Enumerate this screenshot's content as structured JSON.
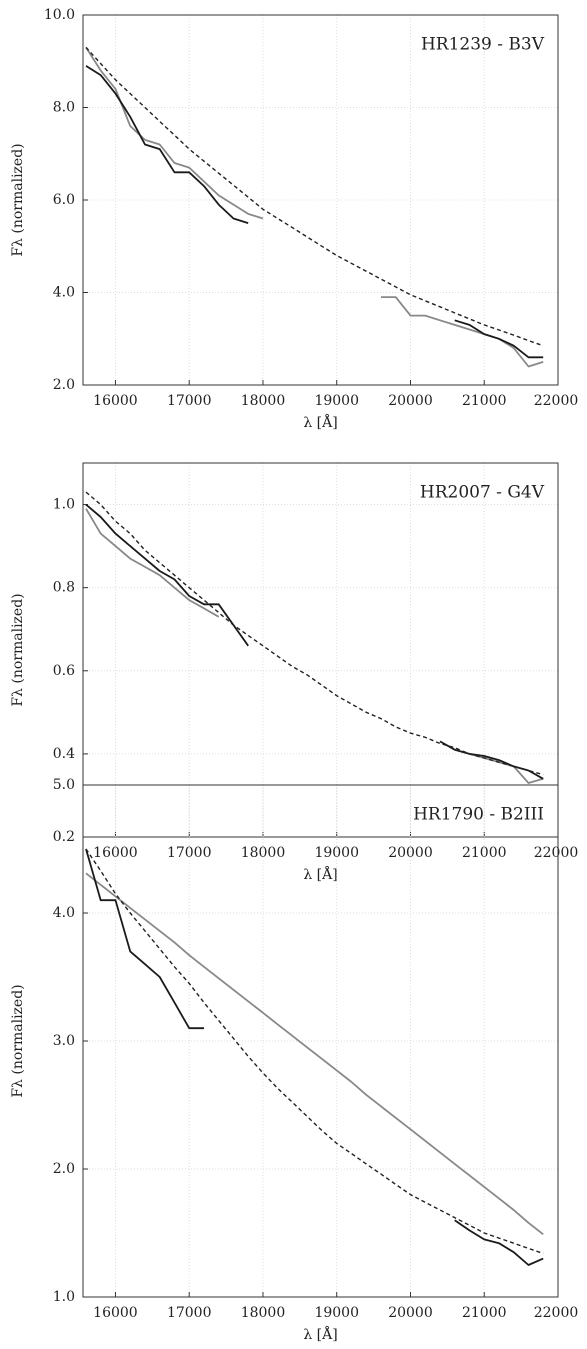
{
  "chart_data": [
    {
      "type": "line",
      "annotation": "HR1239 - B3V",
      "xlabel": "λ [Å]",
      "ylabel": "Fλ (normalized)",
      "xlim": [
        15560,
        22000
      ],
      "xticks": [
        16000,
        17000,
        18000,
        19000,
        20000,
        21000,
        22000
      ],
      "ylim": [
        2,
        10
      ],
      "yticks": [
        {
          "value": 2,
          "label": "2.0"
        },
        {
          "value": 4,
          "label": "4.0"
        },
        {
          "value": 6,
          "label": "6.0"
        },
        {
          "value": 8,
          "label": "8.0"
        },
        {
          "value": 10,
          "label": "10.0"
        }
      ],
      "grid": true,
      "x": [
        15600,
        15800,
        16000,
        16200,
        16400,
        16600,
        16800,
        17000,
        17200,
        17400,
        17600,
        17800,
        18000,
        18200,
        18400,
        18600,
        18800,
        19000,
        19200,
        19400,
        19600,
        19800,
        20000,
        20200,
        20400,
        20600,
        20800,
        21000,
        21200,
        21400,
        21600,
        21800
      ],
      "series": [
        {
          "color": "#888888",
          "linestyle": "solid",
          "values": [
            9.3,
            8.8,
            8.4,
            7.6,
            7.3,
            7.2,
            6.8,
            6.7,
            6.4,
            6.1,
            5.9,
            5.7,
            5.6,
            null,
            null,
            null,
            null,
            null,
            null,
            null,
            3.9,
            3.9,
            3.5,
            3.5,
            3.4,
            3.3,
            3.2,
            3.1,
            3.0,
            2.8,
            2.4,
            2.5
          ]
        },
        {
          "color": "#1a1a1a",
          "linestyle": "solid",
          "values": [
            8.9,
            8.7,
            8.3,
            7.8,
            7.2,
            7.1,
            6.6,
            6.6,
            6.3,
            5.9,
            5.6,
            5.5,
            null,
            null,
            null,
            null,
            null,
            null,
            null,
            null,
            null,
            null,
            null,
            null,
            null,
            3.4,
            3.3,
            3.1,
            3.0,
            2.85,
            2.6,
            2.6
          ]
        },
        {
          "color": "#222222",
          "linestyle": "dashed",
          "values": [
            9.3,
            8.95,
            8.6,
            8.3,
            8.0,
            7.7,
            7.4,
            7.1,
            6.84,
            6.58,
            6.32,
            6.06,
            5.8,
            5.6,
            5.4,
            5.2,
            5.0,
            4.8,
            4.63,
            4.46,
            4.29,
            4.12,
            3.95,
            3.82,
            3.69,
            3.56,
            3.43,
            3.3,
            3.19,
            3.08,
            2.96,
            2.85
          ]
        }
      ]
    },
    {
      "type": "line",
      "annotation": "HR2007 - G4V",
      "xlabel": "λ [Å]",
      "ylabel": "Fλ (normalized)",
      "xlim": [
        15560,
        22000
      ],
      "xticks": [
        16000,
        17000,
        18000,
        19000,
        20000,
        21000,
        22000
      ],
      "ylim": [
        0.2,
        1.1
      ],
      "yticks": [
        0.2,
        0.4,
        0.6,
        0.8,
        {
          "value": 1,
          "label": "1.0"
        }
      ],
      "grid": true,
      "x": [
        15600,
        15800,
        16000,
        16200,
        16400,
        16600,
        16800,
        17000,
        17200,
        17400,
        17600,
        17800,
        18000,
        18200,
        18400,
        18600,
        18800,
        19000,
        19200,
        19400,
        19600,
        19800,
        20000,
        20200,
        20400,
        20600,
        20800,
        21000,
        21200,
        21400,
        21600,
        21800
      ],
      "series": [
        {
          "color": "#888888",
          "linestyle": "solid",
          "values": [
            0.99,
            0.93,
            0.9,
            0.87,
            0.85,
            0.83,
            0.8,
            0.77,
            0.75,
            0.73,
            null,
            null,
            null,
            null,
            null,
            null,
            null,
            null,
            null,
            null,
            null,
            null,
            null,
            null,
            null,
            null,
            0.4,
            0.39,
            0.38,
            0.37,
            0.33,
            0.34
          ]
        },
        {
          "color": "#1a1a1a",
          "linestyle": "solid",
          "values": [
            1.0,
            0.97,
            0.93,
            0.9,
            0.87,
            0.84,
            0.82,
            0.78,
            0.76,
            0.76,
            0.71,
            0.66,
            null,
            null,
            null,
            null,
            null,
            null,
            null,
            null,
            null,
            null,
            null,
            null,
            0.43,
            0.41,
            0.4,
            0.395,
            0.385,
            0.37,
            0.36,
            0.34
          ]
        },
        {
          "color": "#222222",
          "linestyle": "dashed",
          "values": [
            1.03,
            1.0,
            0.96,
            0.93,
            0.89,
            0.86,
            0.83,
            0.8,
            0.77,
            0.74,
            0.71,
            0.685,
            0.66,
            0.635,
            0.61,
            0.59,
            0.565,
            0.54,
            0.52,
            0.5,
            0.485,
            0.465,
            0.45,
            0.44,
            0.425,
            0.415,
            0.4,
            0.39,
            0.38,
            0.37,
            0.36,
            0.35
          ]
        }
      ]
    },
    {
      "type": "line",
      "annotation": "HR1790 - B2III",
      "xlabel": "λ [Å]",
      "ylabel": "Fλ (normalized)",
      "xlim": [
        15560,
        22000
      ],
      "xticks": [
        16000,
        17000,
        18000,
        19000,
        20000,
        21000,
        22000
      ],
      "ylim": [
        1,
        5
      ],
      "yticks": [
        {
          "value": 1,
          "label": "1.0"
        },
        {
          "value": 2,
          "label": "2.0"
        },
        {
          "value": 3,
          "label": "3.0"
        },
        {
          "value": 4,
          "label": "4.0"
        },
        {
          "value": 5,
          "label": "5.0"
        }
      ],
      "grid": true,
      "x": [
        15600,
        15800,
        16000,
        16200,
        16400,
        16600,
        16800,
        17000,
        17200,
        17400,
        17600,
        17800,
        18000,
        18200,
        18400,
        18600,
        18800,
        19000,
        19200,
        19400,
        19600,
        19800,
        20000,
        20200,
        20400,
        20600,
        20800,
        21000,
        21200,
        21400,
        21600,
        21800
      ],
      "series": [
        {
          "color": "#888888",
          "linestyle": "solid",
          "values": [
            4.31,
            4.22,
            4.13,
            4.04,
            3.95,
            3.86,
            3.77,
            3.67,
            3.58,
            3.49,
            3.4,
            3.31,
            3.22,
            3.13,
            3.04,
            2.95,
            2.86,
            2.77,
            2.68,
            2.58,
            2.49,
            2.4,
            2.31,
            2.22,
            2.13,
            2.04,
            1.95,
            1.86,
            1.77,
            1.68,
            1.58,
            1.49
          ]
        },
        {
          "color": "#1a1a1a",
          "linestyle": "solid",
          "values": [
            4.5,
            4.1,
            4.1,
            3.7,
            3.6,
            3.5,
            3.3,
            3.1,
            3.1,
            null,
            null,
            null,
            null,
            null,
            null,
            null,
            null,
            null,
            null,
            null,
            null,
            null,
            null,
            null,
            null,
            1.6,
            1.52,
            1.45,
            1.42,
            1.35,
            1.25,
            1.3
          ]
        },
        {
          "color": "#222222",
          "linestyle": "dashed",
          "values": [
            4.5,
            4.33,
            4.15,
            4.0,
            3.86,
            3.72,
            3.58,
            3.45,
            3.3,
            3.16,
            3.02,
            2.88,
            2.75,
            2.63,
            2.52,
            2.41,
            2.3,
            2.2,
            2.12,
            2.04,
            1.96,
            1.88,
            1.8,
            1.74,
            1.68,
            1.62,
            1.56,
            1.5,
            1.46,
            1.42,
            1.38,
            1.34
          ]
        }
      ]
    }
  ]
}
